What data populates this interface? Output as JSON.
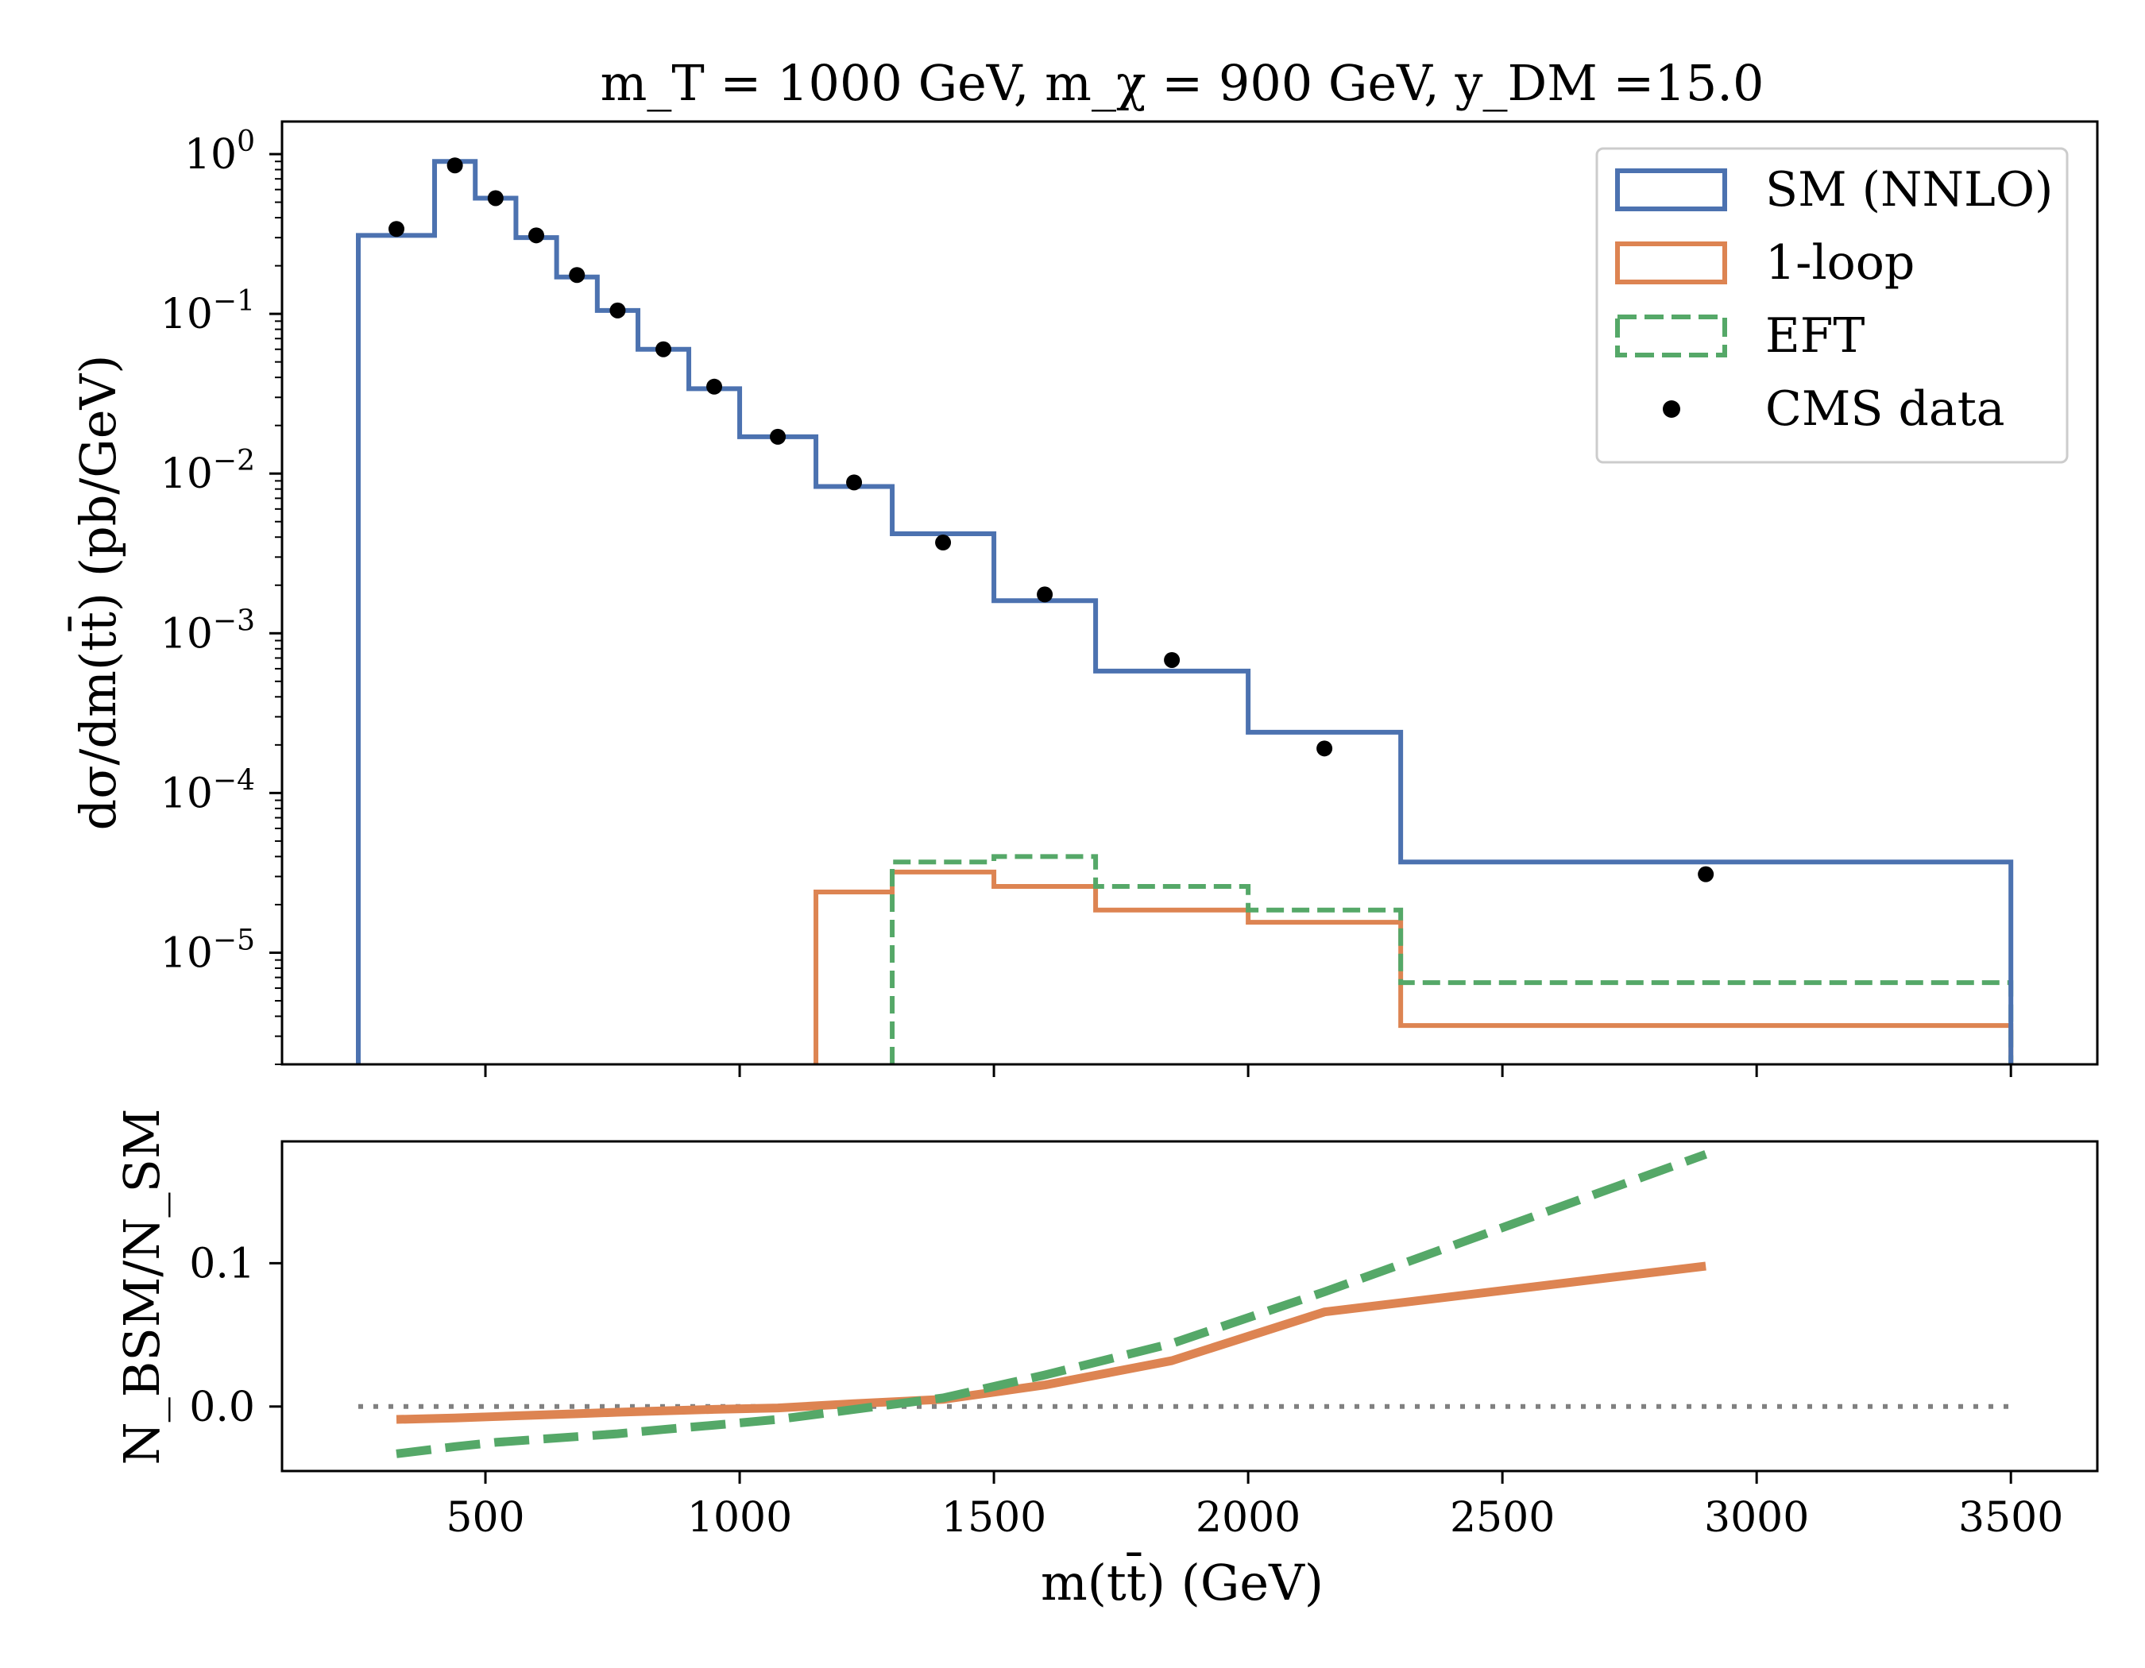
{
  "title": "m_T = 1000 GeV, m_χ = 900 GeV, y_DM =15.0",
  "colors": {
    "sm": "#4c72b0",
    "one_loop": "#dd8452",
    "eft": "#55a868",
    "data": "#000000",
    "zero_line": "#808080"
  },
  "chart_data": [
    {
      "type": "step",
      "panel": "top",
      "ylabel": "dσ/dm(tt̄) (pb/GeV)",
      "yscale": "log",
      "ylim": [
        2e-06,
        1.6
      ],
      "y_ticks": [
        {
          "value": 1,
          "label": "10^0"
        },
        {
          "value": 0.1,
          "label": "10^-1"
        },
        {
          "value": 0.01,
          "label": "10^-2"
        },
        {
          "value": 0.001,
          "label": "10^-3"
        },
        {
          "value": 0.0001,
          "label": "10^-4"
        },
        {
          "value": 1e-05,
          "label": "10^-5"
        }
      ],
      "xlim": [
        100,
        3670
      ],
      "x_ticks": [
        500,
        1000,
        1500,
        2000,
        2500,
        3000,
        3500
      ],
      "legend_position": "top-right",
      "legend": [
        {
          "label": "SM (NNLO)",
          "marker": "solid-box",
          "color_key": "sm"
        },
        {
          "label": "1-loop",
          "marker": "solid-box",
          "color_key": "one_loop"
        },
        {
          "label": "EFT",
          "marker": "dashed-box",
          "color_key": "eft"
        },
        {
          "label": "CMS data",
          "marker": "dot",
          "color_key": "data"
        }
      ],
      "series": [
        {
          "name": "SM (NNLO)",
          "style": "solid",
          "bins": [
            250,
            400,
            480,
            560,
            640,
            720,
            800,
            900,
            1000,
            1150,
            1300,
            1500,
            1700,
            2000,
            2300,
            3500
          ],
          "values": [
            0.31,
            0.9,
            0.53,
            0.3,
            0.17,
            0.105,
            0.06,
            0.034,
            0.017,
            0.0083,
            0.0042,
            0.0016,
            0.00058,
            0.00024,
            3.7e-05
          ]
        },
        {
          "name": "1-loop",
          "style": "solid",
          "bins": [
            1150,
            1300,
            1500,
            1700,
            2000,
            2300,
            3500
          ],
          "values": [
            2.4e-05,
            3.2e-05,
            2.6e-05,
            1.85e-05,
            1.55e-05,
            3.5e-06
          ]
        },
        {
          "name": "EFT",
          "style": "dashed",
          "bins": [
            1300,
            1500,
            1700,
            2000,
            2300,
            3500
          ],
          "values": [
            3.7e-05,
            4e-05,
            2.6e-05,
            1.85e-05,
            6.5e-06
          ]
        },
        {
          "name": "CMS data",
          "style": "points",
          "x": [
            325,
            440,
            520,
            600,
            680,
            760,
            850,
            950,
            1075,
            1225,
            1400,
            1600,
            1850,
            2150,
            2900
          ],
          "y": [
            0.34,
            0.85,
            0.53,
            0.31,
            0.175,
            0.105,
            0.06,
            0.035,
            0.017,
            0.0088,
            0.0037,
            0.00175,
            0.00068,
            0.00019,
            3.1e-05
          ]
        }
      ]
    },
    {
      "type": "line",
      "panel": "bottom",
      "xlabel": "m(tt̄) (GeV)",
      "ylabel": "N_BSM/N_SM",
      "ylim": [
        -0.045,
        0.185
      ],
      "y_ticks": [
        0.0,
        0.1
      ],
      "xlim": [
        100,
        3670
      ],
      "x_ticks": [
        500,
        1000,
        1500,
        2000,
        2500,
        3000,
        3500
      ],
      "reference_line": {
        "y": 0.0,
        "x": [
          250,
          3500
        ],
        "style": "dotted"
      },
      "series": [
        {
          "name": "1-loop",
          "style": "solid",
          "x": [
            325,
            440,
            520,
            600,
            680,
            760,
            850,
            950,
            1075,
            1225,
            1400,
            1600,
            1850,
            2150,
            2900
          ],
          "y": [
            -0.009,
            -0.008,
            -0.007,
            -0.006,
            -0.005,
            -0.004,
            -0.003,
            -0.002,
            -0.001,
            0.002,
            0.005,
            0.015,
            0.032,
            0.066,
            0.098
          ]
        },
        {
          "name": "EFT",
          "style": "dashed",
          "x": [
            325,
            440,
            520,
            600,
            680,
            760,
            850,
            950,
            1075,
            1225,
            1400,
            1600,
            1850,
            2150,
            2900
          ],
          "y": [
            -0.033,
            -0.028,
            -0.025,
            -0.023,
            -0.021,
            -0.019,
            -0.016,
            -0.013,
            -0.009,
            -0.002,
            0.006,
            0.022,
            0.044,
            0.08,
            0.176
          ]
        }
      ]
    }
  ]
}
